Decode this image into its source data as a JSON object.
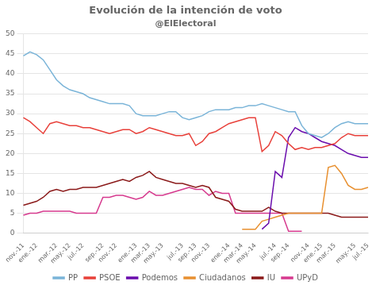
{
  "chart_data": {
    "type": "line",
    "title": "Evolución de la intención de voto",
    "subtitle": "@ElElectoral",
    "categories": [
      "nov.-11",
      null,
      "ene.-12",
      null,
      null,
      "mar.-12",
      null,
      "may.-12",
      null,
      "jul.-12",
      null,
      null,
      "sep.-12",
      null,
      "nov.-12",
      null,
      null,
      "ene.-13",
      null,
      "mar.-13",
      null,
      "may.-13",
      null,
      null,
      "jul.-13",
      null,
      "sep.-13",
      null,
      "nov.-13",
      null,
      null,
      "ene.-14",
      null,
      "mar.-14",
      null,
      "may.-14",
      null,
      null,
      "jul.-14",
      null,
      "sep.-14",
      null,
      null,
      "nov.-14",
      null,
      "ene.-15",
      null,
      "mar.-15",
      null,
      null,
      "may.-15",
      null,
      "jul.-15"
    ],
    "series": [
      {
        "name": "PP",
        "color": "#7ab4d8",
        "values": [
          44.5,
          45.5,
          44.8,
          43.5,
          41.0,
          38.5,
          37.0,
          36.0,
          35.5,
          35.0,
          34.0,
          33.5,
          33.0,
          32.5,
          32.5,
          32.5,
          32.0,
          30.0,
          29.5,
          29.5,
          29.5,
          30.0,
          30.5,
          30.5,
          29.0,
          28.5,
          29.0,
          29.5,
          30.5,
          31.0,
          31.0,
          31.0,
          31.5,
          31.5,
          32.0,
          32.0,
          32.5,
          32.0,
          31.5,
          31.0,
          30.5,
          30.5,
          27.0,
          25.0,
          24.5,
          24.0,
          25.0,
          26.5,
          27.5,
          28.0,
          27.5,
          27.5,
          27.5
        ]
      },
      {
        "name": "PSOE",
        "color": "#e8403a",
        "values": [
          29.0,
          28.0,
          26.5,
          25.0,
          27.5,
          28.0,
          27.5,
          27.0,
          27.0,
          26.5,
          26.5,
          26.0,
          25.5,
          25.0,
          25.5,
          26.0,
          26.0,
          25.0,
          25.5,
          26.5,
          26.0,
          25.5,
          25.0,
          24.5,
          24.5,
          25.0,
          22.0,
          23.0,
          25.0,
          25.5,
          26.5,
          27.5,
          28.0,
          28.5,
          29.0,
          29.0,
          20.5,
          22.0,
          25.5,
          24.5,
          22.5,
          21.0,
          21.5,
          21.0,
          21.5,
          21.5,
          22.0,
          22.5,
          24.0,
          25.0,
          24.5,
          24.5,
          24.5
        ]
      },
      {
        "name": "Podemos",
        "color": "#6a0dad",
        "values": [
          null,
          null,
          null,
          null,
          null,
          null,
          null,
          null,
          null,
          null,
          null,
          null,
          null,
          null,
          null,
          null,
          null,
          null,
          null,
          null,
          null,
          null,
          null,
          null,
          null,
          null,
          null,
          null,
          null,
          null,
          null,
          null,
          null,
          null,
          null,
          null,
          1.0,
          2.5,
          15.5,
          14.0,
          24.0,
          26.5,
          25.5,
          25.0,
          24.0,
          23.0,
          22.5,
          22.0,
          21.0,
          20.0,
          19.5,
          19.0,
          19.0
        ]
      },
      {
        "name": "Ciudadanos",
        "color": "#e89030",
        "values": [
          null,
          null,
          null,
          null,
          null,
          null,
          null,
          null,
          null,
          null,
          null,
          null,
          null,
          null,
          null,
          null,
          null,
          null,
          null,
          null,
          null,
          null,
          null,
          null,
          null,
          null,
          null,
          null,
          null,
          null,
          null,
          null,
          null,
          1.0,
          1.0,
          1.0,
          3.0,
          3.5,
          4.0,
          4.5,
          5.0,
          5.0,
          5.0,
          5.0,
          5.0,
          5.0,
          16.5,
          17.0,
          15.0,
          12.0,
          11.0,
          11.0,
          11.5
        ]
      },
      {
        "name": "IU",
        "color": "#8b1a1a",
        "values": [
          7.0,
          7.5,
          8.0,
          9.0,
          10.5,
          11.0,
          10.5,
          11.0,
          11.0,
          11.5,
          11.5,
          11.5,
          12.0,
          12.5,
          13.0,
          13.5,
          13.0,
          14.0,
          14.5,
          15.5,
          14.0,
          13.5,
          13.0,
          12.5,
          12.5,
          12.0,
          11.5,
          12.0,
          11.5,
          9.0,
          8.5,
          8.0,
          6.0,
          5.5,
          5.5,
          5.5,
          5.5,
          6.5,
          5.5,
          5.0,
          5.0,
          5.0,
          5.0,
          5.0,
          5.0,
          5.0,
          5.0,
          4.5,
          4.0,
          4.0,
          4.0,
          4.0,
          4.0
        ]
      },
      {
        "name": "UPyD",
        "color": "#d63a8e",
        "values": [
          4.5,
          5.0,
          5.0,
          5.5,
          5.5,
          5.5,
          5.5,
          5.5,
          5.0,
          5.0,
          5.0,
          5.0,
          9.0,
          9.0,
          9.5,
          9.5,
          9.0,
          8.5,
          9.0,
          10.5,
          9.5,
          9.5,
          10.0,
          10.5,
          11.0,
          11.5,
          11.0,
          11.0,
          9.5,
          10.5,
          10.0,
          10.0,
          5.0,
          5.0,
          5.0,
          5.0,
          5.0,
          5.0,
          5.0,
          5.0,
          0.5,
          0.5,
          0.5,
          null,
          null,
          null,
          null,
          null,
          null,
          null,
          null,
          null,
          null
        ]
      }
    ],
    "ylim": [
      0,
      50
    ],
    "yticks": [
      0,
      5,
      10,
      15,
      20,
      25,
      30,
      35,
      40,
      45,
      50
    ],
    "grid": true,
    "legend": "bottom"
  }
}
